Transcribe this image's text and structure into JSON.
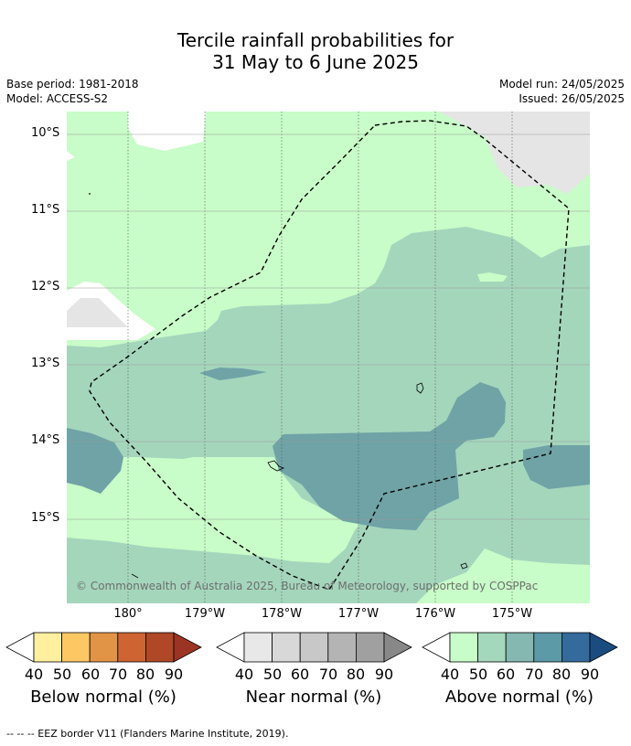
{
  "title_line1": "Tercile rainfall probabilities for",
  "title_line2": "31 May to 6 June 2025",
  "base_period": "Base period: 1981-2018",
  "model": "Model: ACCESS-S2",
  "model_run": "Model run: 24/05/2025",
  "issued": "Issued: 26/05/2025",
  "copyright": "© Commonwealth of Australia 2025, Bureau of Meteorology, supported by COSPPac",
  "lat_labels": [
    "10°S",
    "11°S",
    "12°S",
    "13°S",
    "14°S",
    "15°S"
  ],
  "lon_labels": [
    "180°",
    "179°W",
    "178°W",
    "177°W",
    "176°W",
    "175°W"
  ],
  "colorbars": [
    {
      "label": "Below normal (%)",
      "ticks": [
        "40",
        "50",
        "60",
        "70",
        "80",
        "90"
      ],
      "colors": [
        "#fff0a0",
        "#fdc864",
        "#e29446",
        "#cd6432",
        "#ae4826",
        "#9c3424"
      ]
    },
    {
      "label": "Near normal (%)",
      "ticks": [
        "40",
        "50",
        "60",
        "70",
        "80",
        "90"
      ],
      "colors": [
        "#e8e8e8",
        "#d8d8d8",
        "#c8c8c8",
        "#b4b4b4",
        "#a0a0a0",
        "#888888"
      ]
    },
    {
      "label": "Above normal (%)",
      "ticks": [
        "40",
        "50",
        "60",
        "70",
        "80",
        "90"
      ],
      "colors": [
        "#c8fcc8",
        "#a4d8bc",
        "#84b8b0",
        "#5c9aa8",
        "#346a9c",
        "#1a4c80"
      ]
    }
  ],
  "legend_note": "-- -- -- EEZ border V11 (Flanders Marine Institute, 2019)."
}
